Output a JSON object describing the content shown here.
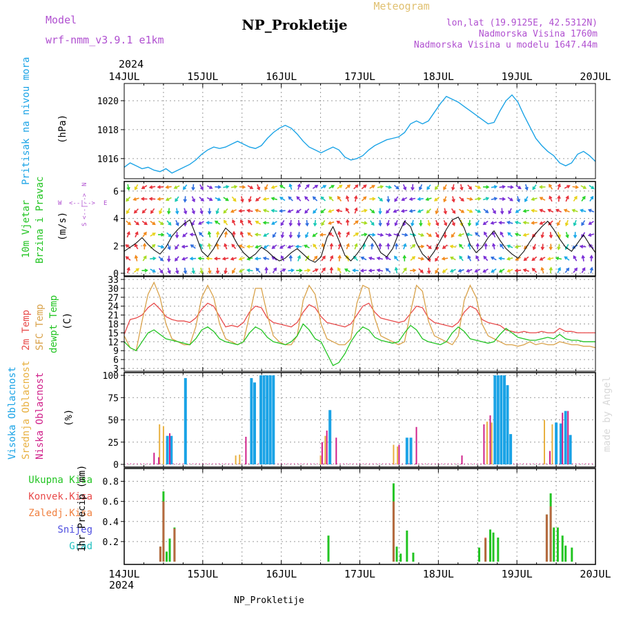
{
  "header": {
    "model_label": "Model",
    "model_value": "wrf-nmm_v3.9.1 e1km",
    "station_title": "NP_Prokletije",
    "meteogram_label": "Meteogram",
    "lonlat": "lon,lat (19.9125E, 42.5312N)",
    "altitude": "Nadmorska Visina 1760m",
    "model_altitude": "Nadmorska Visina u modelu 1647.44m",
    "footer_station": "NP_Prokletije",
    "credit": "made by Angel",
    "year_top": "2024",
    "year_bottom": "2024"
  },
  "colors": {
    "pressure": "#1aa3e6",
    "t2m": "#e84a4a",
    "sfc": "#d9a24a",
    "dewpt": "#22c422",
    "high_cloud": "#1aa3e6",
    "mid_cloud": "#e8b040",
    "low_cloud": "#d0208a",
    "precip_total": "#22c422",
    "precip_conv": "#e84a4a",
    "model_text": "#b050d0"
  },
  "chart_data": [
    {
      "type": "line",
      "panel": "pressure",
      "ylabel": "Pritisak na nivou mora",
      "unit": "(hPa)",
      "ylim": [
        1014.8,
        1021.0
      ],
      "yticks": [
        1016,
        1018,
        1020
      ],
      "x_ticks": [
        "14JUL",
        "15JUL",
        "16JUL",
        "17JUL",
        "18JUL",
        "19JUL",
        "20JUL"
      ],
      "grid": true,
      "series": [
        {
          "values": [
            1015.4,
            1015.7,
            1015.5,
            1015.3,
            1015.4,
            1015.2,
            1015.1,
            1015.3,
            1015.0,
            1015.2,
            1015.4,
            1015.6,
            1015.9,
            1016.3,
            1016.6,
            1016.8,
            1016.7,
            1016.8,
            1017.0,
            1017.2,
            1017.0,
            1016.8,
            1016.7,
            1016.9,
            1017.4,
            1017.8,
            1018.1,
            1018.3,
            1018.1,
            1017.7,
            1017.2,
            1016.8,
            1016.6,
            1016.4,
            1016.6,
            1016.8,
            1016.6,
            1016.1,
            1015.9,
            1016.0,
            1016.2,
            1016.6,
            1016.9,
            1017.1,
            1017.3,
            1017.4,
            1017.5,
            1017.8,
            1018.4,
            1018.6,
            1018.4,
            1018.6,
            1019.2,
            1019.8,
            1020.3,
            1020.1,
            1019.9,
            1019.6,
            1019.3,
            1019.0,
            1018.7,
            1018.4,
            1018.5,
            1019.3,
            1020.0,
            1020.4,
            1019.9,
            1019.0,
            1018.2,
            1017.4,
            1016.9,
            1016.5,
            1016.2,
            1015.7,
            1015.5,
            1015.7,
            1016.3,
            1016.5,
            1016.2,
            1015.8
          ]
        }
      ]
    },
    {
      "type": "line",
      "panel": "wind",
      "ylabel": "10m Vjetar Brzina i Pravac",
      "unit": "(m/s)",
      "ylim": [
        0,
        6.5
      ],
      "yticks": [
        0,
        2,
        4,
        6
      ],
      "compass": [
        "N",
        "W",
        "E",
        "S"
      ],
      "compass_arrows": "<--|-->",
      "grid": true,
      "series": [
        {
          "values": [
            1.6,
            1.9,
            2.2,
            2.6,
            2.1,
            1.7,
            1.4,
            1.9,
            2.7,
            3.2,
            3.6,
            3.9,
            2.8,
            1.6,
            1.2,
            1.8,
            2.6,
            3.3,
            2.9,
            2.1,
            1.5,
            1.1,
            1.4,
            1.9,
            1.6,
            1.2,
            0.9,
            1.1,
            1.5,
            1.8,
            1.4,
            1.0,
            0.8,
            1.2,
            2.6,
            3.4,
            2.4,
            1.3,
            0.9,
            1.4,
            2.0,
            2.8,
            2.3,
            1.5,
            1.2,
            1.8,
            2.9,
            3.8,
            3.4,
            2.2,
            1.4,
            1.0,
            1.6,
            2.4,
            3.2,
            3.9,
            4.1,
            3.3,
            2.1,
            1.5,
            1.9,
            2.6,
            3.1,
            2.4,
            1.8,
            1.4,
            1.1,
            1.6,
            2.3,
            2.9,
            3.4,
            3.8,
            3.2,
            2.5,
            1.9,
            1.6,
            2.2,
            2.8,
            2.1,
            1.5
          ]
        }
      ]
    },
    {
      "type": "line",
      "panel": "temperature",
      "ylabel": [
        "2m Temp",
        "SFC Temp",
        "dewpt Temp"
      ],
      "unit": "(C)",
      "ylim": [
        3,
        33
      ],
      "yticks": [
        3,
        6,
        9,
        12,
        15,
        18,
        21,
        24,
        27,
        30,
        33
      ],
      "grid": true,
      "series": [
        {
          "name": "2m Temp",
          "values": [
            14.5,
            19.5,
            20.0,
            21.0,
            23.5,
            25.0,
            23.0,
            20.5,
            19.5,
            19.0,
            19.0,
            18.5,
            20.0,
            23.0,
            25.0,
            24.0,
            20.5,
            17.0,
            17.5,
            17.0,
            18.5,
            22.0,
            24.0,
            23.5,
            20.0,
            18.5,
            18.0,
            17.5,
            17.0,
            18.5,
            22.0,
            24.5,
            23.5,
            20.5,
            18.5,
            18.0,
            17.5,
            17.0,
            18.0,
            21.0,
            24.0,
            25.0,
            22.0,
            20.0,
            19.5,
            19.0,
            18.5,
            19.0,
            21.5,
            24.0,
            23.5,
            20.0,
            18.5,
            18.0,
            17.5,
            17.0,
            18.5,
            22.0,
            24.0,
            23.0,
            19.5,
            18.5,
            18.0,
            17.5,
            16.0,
            15.5,
            15.0,
            15.5,
            15.0,
            15.0,
            15.5,
            15.0,
            15.0,
            16.5,
            15.5,
            15.5,
            15.0,
            15.0,
            15.0,
            15.0
          ]
        },
        {
          "name": "SFC Temp",
          "values": [
            14.0,
            10.0,
            9.0,
            19.0,
            28.0,
            32.0,
            27.0,
            18.0,
            13.0,
            12.0,
            11.0,
            11.0,
            17.0,
            27.0,
            31.0,
            27.0,
            18.0,
            13.0,
            12.0,
            11.0,
            12.0,
            21.0,
            30.0,
            30.0,
            21.0,
            14.0,
            12.0,
            11.0,
            11.0,
            14.0,
            26.0,
            31.0,
            28.0,
            18.0,
            13.0,
            12.0,
            11.0,
            11.0,
            13.0,
            25.0,
            31.0,
            30.0,
            20.0,
            14.0,
            13.0,
            12.0,
            11.0,
            12.0,
            22.0,
            31.0,
            29.0,
            19.0,
            14.0,
            13.0,
            12.0,
            11.0,
            14.0,
            26.0,
            31.0,
            27.0,
            18.0,
            14.0,
            13.0,
            12.0,
            11.0,
            11.0,
            10.5,
            11.0,
            12.0,
            11.0,
            11.5,
            11.0,
            11.0,
            12.0,
            11.5,
            11.0,
            11.0,
            10.5,
            10.5,
            10.0
          ]
        },
        {
          "name": "dewpt Temp",
          "values": [
            12.0,
            10.0,
            9.0,
            12.0,
            15.0,
            16.0,
            14.5,
            13.0,
            12.5,
            12.0,
            11.5,
            11.0,
            13.0,
            16.0,
            17.0,
            15.5,
            13.0,
            12.0,
            11.5,
            11.0,
            12.0,
            15.0,
            17.0,
            16.0,
            13.5,
            12.0,
            11.5,
            11.0,
            12.0,
            14.0,
            18.0,
            16.0,
            13.0,
            12.0,
            8.0,
            4.0,
            5.0,
            8.0,
            12.0,
            15.0,
            17.0,
            16.0,
            13.5,
            12.5,
            12.0,
            11.5,
            12.0,
            15.0,
            17.5,
            16.0,
            13.0,
            12.0,
            11.5,
            11.0,
            12.0,
            15.0,
            17.0,
            15.5,
            13.0,
            12.5,
            12.0,
            11.5,
            12.0,
            14.5,
            16.5,
            15.0,
            13.5,
            13.0,
            12.5,
            12.5,
            13.0,
            13.5,
            13.0,
            14.5,
            13.0,
            12.5,
            12.5,
            12.0,
            12.0,
            12.0
          ]
        }
      ]
    },
    {
      "type": "bar",
      "panel": "cloud",
      "ylabel": [
        "Visoka Oblacnost",
        "Srednja Oblacnost",
        "Niska Oblacnost"
      ],
      "unit": "(%)",
      "ylim": [
        0,
        100
      ],
      "yticks": [
        0,
        25,
        50,
        75,
        100
      ],
      "grid": true,
      "series": [
        {
          "name": "Visoka Oblacnost",
          "bars": [
            [
              14.55,
              32
            ],
            [
              14.6,
              32
            ],
            [
              14.78,
              97
            ],
            [
              15.62,
              97
            ],
            [
              15.66,
              92
            ],
            [
              15.74,
              100
            ],
            [
              15.78,
              100
            ],
            [
              15.82,
              100
            ],
            [
              15.86,
              100
            ],
            [
              15.9,
              100
            ],
            [
              16.62,
              61
            ],
            [
              17.6,
              30
            ],
            [
              17.65,
              30
            ],
            [
              18.72,
              100
            ],
            [
              18.76,
              100
            ],
            [
              18.8,
              100
            ],
            [
              18.84,
              100
            ],
            [
              18.88,
              89
            ],
            [
              18.92,
              34
            ],
            [
              19.5,
              47
            ],
            [
              19.56,
              46
            ],
            [
              19.62,
              60
            ],
            [
              19.68,
              33
            ]
          ]
        },
        {
          "name": "Srednja Oblacnost",
          "bars": [
            [
              14.45,
              45
            ],
            [
              14.5,
              43
            ],
            [
              15.42,
              10
            ],
            [
              15.47,
              11
            ],
            [
              16.5,
              10
            ],
            [
              16.56,
              32
            ],
            [
              17.43,
              22
            ],
            [
              17.48,
              20
            ],
            [
              18.62,
              48
            ],
            [
              18.68,
              47
            ],
            [
              19.35,
              50
            ],
            [
              19.45,
              45
            ]
          ]
        },
        {
          "name": "Niska Oblacnost",
          "bars": [
            [
              14.38,
              13
            ],
            [
              14.44,
              8
            ],
            [
              14.58,
              35
            ],
            [
              15.55,
              31
            ],
            [
              16.52,
              25
            ],
            [
              16.58,
              38
            ],
            [
              16.7,
              30
            ],
            [
              17.5,
              22
            ],
            [
              17.72,
              42
            ],
            [
              18.3,
              10
            ],
            [
              18.58,
              45
            ],
            [
              18.66,
              55
            ],
            [
              19.42,
              15
            ],
            [
              19.58,
              58
            ],
            [
              19.65,
              60
            ]
          ]
        }
      ]
    },
    {
      "type": "bar",
      "panel": "precip",
      "ylabel": "1hr Precip",
      "unit": "(mm)",
      "ylim": [
        0,
        0.9
      ],
      "yticks": [
        0.2,
        0.4,
        0.6,
        0.8
      ],
      "legend": [
        "Ukupna Kisa",
        "Konvek.Kisa",
        "Zaledj.Kisa",
        "Snijeg",
        "Grad"
      ],
      "grid": true,
      "series": [
        {
          "name": "Ukupna Kisa",
          "bars": [
            [
              14.46,
              0.15
            ],
            [
              14.5,
              0.7
            ],
            [
              14.54,
              0.1
            ],
            [
              14.58,
              0.23
            ],
            [
              14.64,
              0.34
            ],
            [
              16.6,
              0.26
            ],
            [
              17.43,
              0.78
            ],
            [
              17.47,
              0.15
            ],
            [
              17.52,
              0.08
            ],
            [
              17.6,
              0.31
            ],
            [
              17.68,
              0.09
            ],
            [
              18.52,
              0.14
            ],
            [
              18.6,
              0.23
            ],
            [
              18.66,
              0.32
            ],
            [
              18.7,
              0.29
            ],
            [
              18.76,
              0.24
            ],
            [
              19.38,
              0.47
            ],
            [
              19.43,
              0.68
            ],
            [
              19.47,
              0.34
            ],
            [
              19.52,
              0.34
            ],
            [
              19.58,
              0.26
            ],
            [
              19.62,
              0.16
            ],
            [
              19.7,
              0.14
            ]
          ]
        },
        {
          "name": "Konvek.Kisa",
          "bars": [
            [
              14.46,
              0.15
            ],
            [
              14.5,
              0.6
            ],
            [
              14.64,
              0.33
            ],
            [
              17.43,
              0.6
            ],
            [
              18.6,
              0.24
            ],
            [
              19.38,
              0.47
            ],
            [
              19.43,
              0.55
            ]
          ]
        }
      ]
    }
  ]
}
